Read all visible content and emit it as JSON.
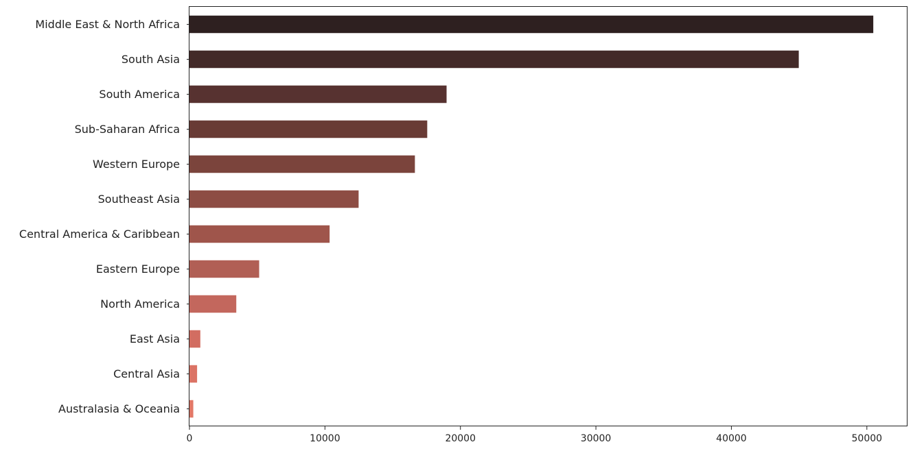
{
  "chart_data": {
    "type": "bar",
    "orientation": "horizontal",
    "categories": [
      "Middle East & North Africa",
      "South Asia",
      "South America",
      "Sub-Saharan Africa",
      "Western Europe",
      "Southeast Asia",
      "Central America & Caribbean",
      "Eastern Europe",
      "North America",
      "East Asia",
      "Central Asia",
      "Australasia & Oceania"
    ],
    "values": [
      50474,
      44974,
      18978,
      17550,
      16639,
      12485,
      10344,
      5144,
      3456,
      802,
      563,
      282
    ],
    "colors": [
      "#2e2020",
      "#432a28",
      "#573230",
      "#693b35",
      "#7b443c",
      "#8d4d44",
      "#9f554b",
      "#b15f55",
      "#c3675d",
      "#d26d61",
      "#db7365",
      "#e27867"
    ],
    "xlim": [
      0,
      53000
    ],
    "xticks": [
      0,
      10000,
      20000,
      30000,
      40000,
      50000
    ],
    "title": "",
    "xlabel": "",
    "ylabel": "",
    "grid": false,
    "legend": "none"
  }
}
